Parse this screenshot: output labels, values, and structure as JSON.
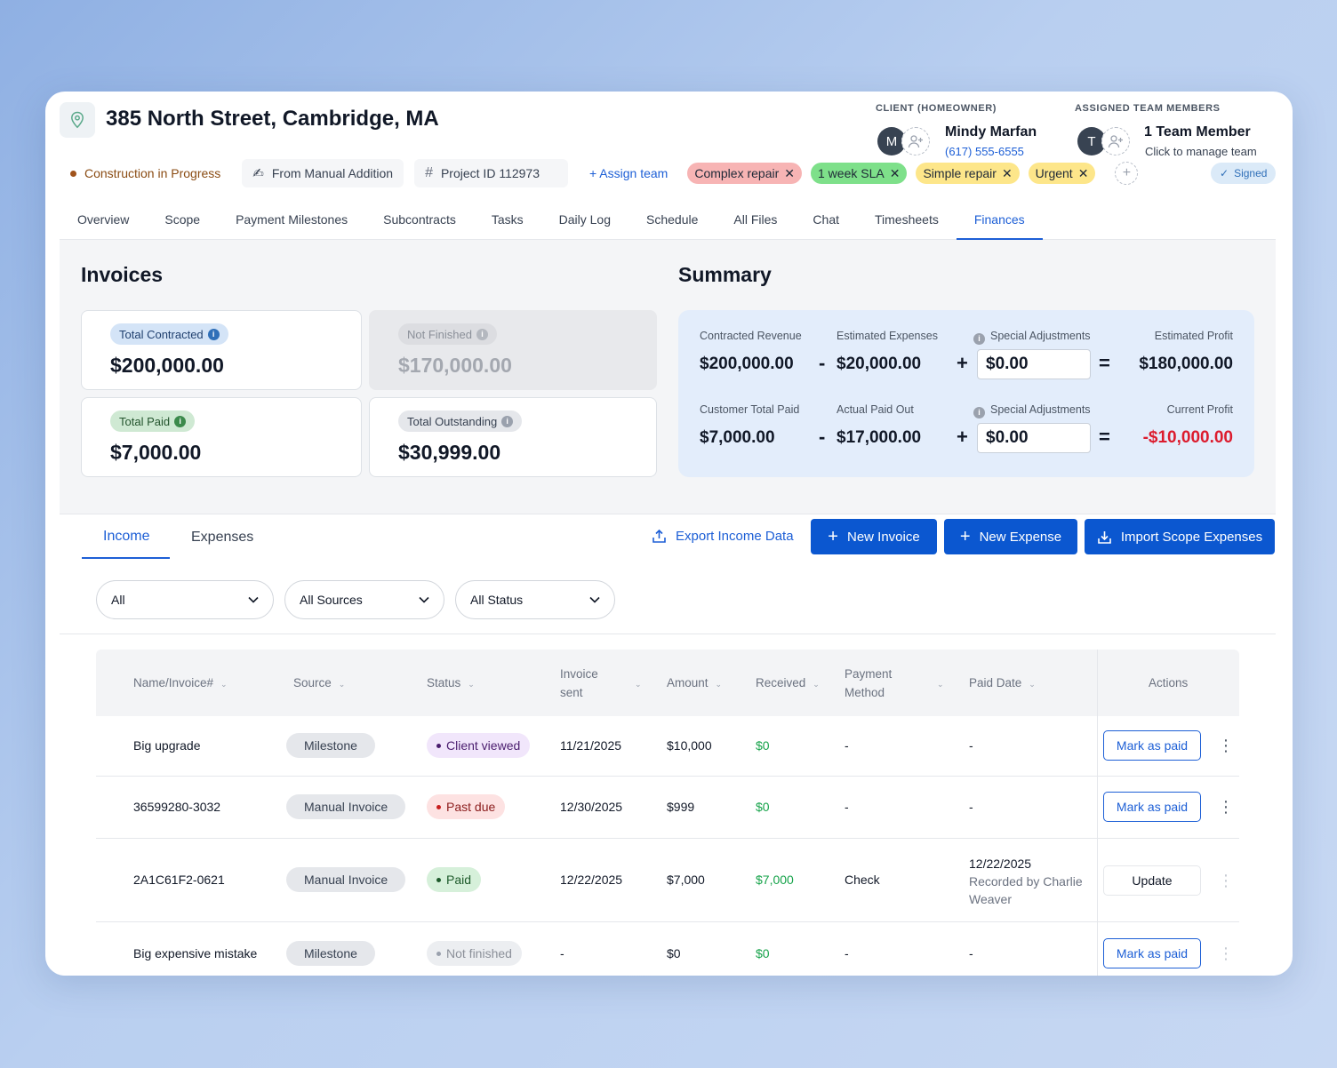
{
  "header": {
    "address": "385 North Street, Cambridge, MA",
    "status": "Construction in Progress",
    "source": "From Manual Addition",
    "project_id": "Project ID 112973",
    "assign_team": "+ Assign team",
    "tags": [
      {
        "label": "Complex repair",
        "color": "#f7b4b4"
      },
      {
        "label": "1 week SLA",
        "color": "#7ee08a"
      },
      {
        "label": "Simple repair",
        "color": "#fde68a"
      },
      {
        "label": "Urgent",
        "color": "#fde68a"
      }
    ],
    "client_label": "CLIENT (HOMEOWNER)",
    "client_initial": "M",
    "client_name": "Mindy Marfan",
    "client_phone": "(617) 555-6555",
    "team_label": "ASSIGNED TEAM MEMBERS",
    "team_initial": "T",
    "team_name": "1 Team Member",
    "team_sub": "Click to manage team",
    "signed": "Signed"
  },
  "tabs": [
    "Overview",
    "Scope",
    "Payment Milestones",
    "Subcontracts",
    "Tasks",
    "Daily Log",
    "Schedule",
    "All Files",
    "Chat",
    "Timesheets",
    "Finances"
  ],
  "invoices": {
    "title": "Invoices",
    "total_contracted_label": "Total Contracted",
    "total_contracted": "$200,000.00",
    "not_finished_label": "Not Finished",
    "not_finished": "$170,000.00",
    "total_paid_label": "Total Paid",
    "total_paid": "$7,000.00",
    "total_outstanding_label": "Total Outstanding",
    "total_outstanding": "$30,999.00"
  },
  "summary": {
    "title": "Summary",
    "row1": {
      "revenue_label": "Contracted Revenue",
      "revenue": "$200,000.00",
      "expenses_label": "Estimated Expenses",
      "expenses": "$20,000.00",
      "adj_label": "Special Adjustments",
      "adj": "$0.00",
      "profit_label": "Estimated Profit",
      "profit": "$180,000.00"
    },
    "row2": {
      "paid_label": "Customer Total Paid",
      "paid": "$7,000.00",
      "out_label": "Actual Paid Out",
      "out": "$17,000.00",
      "adj_label": "Special Adjustments",
      "adj": "$0.00",
      "profit_label": "Current Profit",
      "profit": "-$10,000.00"
    },
    "ops": {
      "minus": "-",
      "plus": "+",
      "equals": "="
    }
  },
  "panel": {
    "tab_income": "Income",
    "tab_expenses": "Expenses",
    "export": "Export Income Data",
    "new_invoice": "New Invoice",
    "new_expense": "New Expense",
    "import": "Import Scope Expenses",
    "filters": [
      "All",
      "All Sources",
      "All Status"
    ]
  },
  "table": {
    "headers": {
      "name": "Name/Invoice#",
      "source": "Source",
      "status": "Status",
      "sent1": "Invoice",
      "sent2": "sent",
      "amount": "Amount",
      "received": "Received",
      "method1": "Payment",
      "method2": "Method",
      "paid_date": "Paid Date",
      "actions": "Actions"
    },
    "rows": [
      {
        "name": "Big upgrade",
        "source": "Milestone",
        "status": "Client viewed",
        "sent": "11/21/2025",
        "amount": "$10,000",
        "received": "$0",
        "method": "-",
        "paid_date": "-",
        "action": "Mark as paid"
      },
      {
        "name": "36599280-3032",
        "source": "Manual Invoice",
        "status": "Past due",
        "sent": "12/30/2025",
        "amount": "$999",
        "received": "$0",
        "method": "-",
        "paid_date": "-",
        "action": "Mark as paid"
      },
      {
        "name": "2A1C61F2-0621",
        "source": "Manual Invoice",
        "status": "Paid",
        "sent": "12/22/2025",
        "amount": "$7,000",
        "received": "$7,000",
        "method": "Check",
        "paid_date": "12/22/2025",
        "paid_note1": "Recorded by Charlie",
        "paid_note2": "Weaver",
        "action": "Update"
      },
      {
        "name": "Big expensive mistake",
        "source": "Milestone",
        "status": "Not finished",
        "sent": "-",
        "amount": "$0",
        "received": "$0",
        "method": "-",
        "paid_date": "-",
        "action": "Mark as paid"
      }
    ]
  }
}
